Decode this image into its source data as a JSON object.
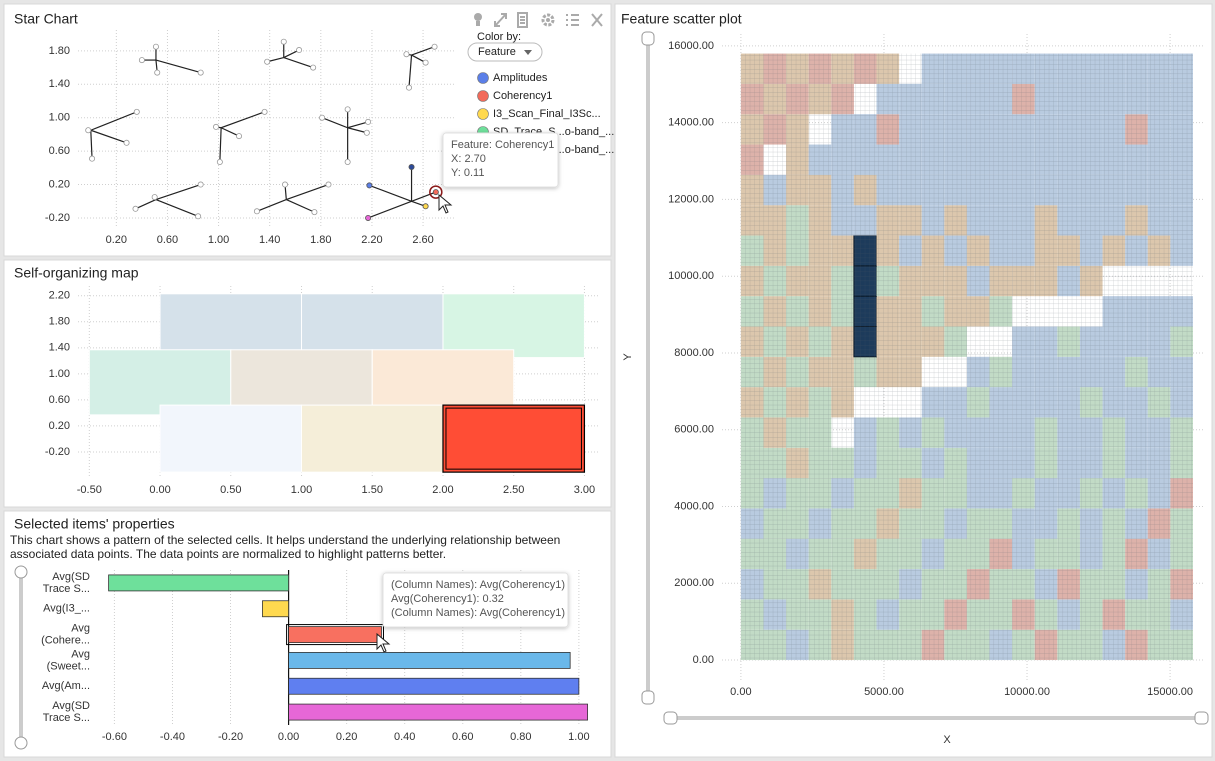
{
  "chart_data": [
    {
      "type": "star",
      "title": "Star Chart",
      "xlim": [
        -0.1,
        2.85
      ],
      "ylim": [
        -0.32,
        2.05
      ],
      "xticks": [
        {
          "value": 0.2,
          "label": "0.20"
        },
        {
          "value": 0.6,
          "label": "0.60"
        },
        {
          "value": 1.0,
          "label": "1.00"
        },
        {
          "value": 1.4,
          "label": "1.40"
        },
        {
          "value": 1.8,
          "label": "1.80"
        },
        {
          "value": 2.2,
          "label": "2.20"
        },
        {
          "value": 2.6,
          "label": "2.60"
        }
      ],
      "yticks": [
        {
          "value": 1.8,
          "label": "1.80"
        },
        {
          "value": 1.4,
          "label": "1.40"
        },
        {
          "value": 1.0,
          "label": "1.00"
        },
        {
          "value": 0.6,
          "label": "0.60"
        },
        {
          "value": 0.2,
          "label": "0.20"
        },
        {
          "value": -0.2,
          "label": "-0.20"
        }
      ],
      "grid": true,
      "legend_title": "Color by:",
      "dropdown": "Feature",
      "series": [
        {
          "name": "Amplitudes",
          "color": "#5b7fe8"
        },
        {
          "name": "Coherency1",
          "color": "#f26a5a"
        },
        {
          "name": "I3_Scan_Final_I3Sc...",
          "color": "#ffd94f"
        },
        {
          "name": "SD_Trace_S...o-band_...",
          "color": "#6ee09b"
        },
        {
          "name": "SD_Trace_S...o-band_...",
          "color": "#e667d7"
        }
      ],
      "stars": [
        {
          "center": [
            0.51,
            1.69
          ],
          "rays": [
            [
              0.51,
              1.85
            ],
            [
              0.4,
              1.69
            ],
            [
              0.52,
              1.54
            ],
            [
              0.86,
              1.54
            ]
          ]
        },
        {
          "center": [
            1.51,
            1.72
          ],
          "rays": [
            [
              1.51,
              1.91
            ],
            [
              1.38,
              1.67
            ],
            [
              1.74,
              1.6
            ],
            [
              1.63,
              1.81
            ]
          ]
        },
        {
          "center": [
            2.51,
            1.75
          ],
          "rays": [
            [
              2.69,
              1.85
            ],
            [
              2.49,
              1.36
            ],
            [
              2.62,
              1.66
            ],
            [
              2.47,
              1.76
            ]
          ]
        },
        {
          "center": [
            0.0,
            0.85
          ],
          "rays": [
            [
              0.36,
              1.07
            ],
            [
              0.28,
              0.7
            ],
            [
              0.01,
              0.51
            ],
            [
              -0.02,
              0.85
            ]
          ]
        },
        {
          "center": [
            1.02,
            0.88
          ],
          "rays": [
            [
              1.36,
              1.07
            ],
            [
              1.01,
              0.47
            ],
            [
              1.16,
              0.78
            ],
            [
              0.98,
              0.89
            ]
          ]
        },
        {
          "center": [
            2.01,
            0.88
          ],
          "rays": [
            [
              2.01,
              1.1
            ],
            [
              2.17,
              0.95
            ],
            [
              2.01,
              0.47
            ],
            [
              1.81,
              1.0
            ],
            [
              2.16,
              0.82
            ]
          ]
        },
        {
          "center": [
            0.51,
            0.02
          ],
          "rays": [
            [
              0.86,
              0.2
            ],
            [
              0.84,
              -0.18
            ],
            [
              0.35,
              -0.09
            ],
            [
              0.5,
              0.05
            ]
          ]
        },
        {
          "center": [
            1.53,
            0.02
          ],
          "rays": [
            [
              1.86,
              0.2
            ],
            [
              1.52,
              0.2
            ],
            [
              1.75,
              -0.13
            ],
            [
              1.3,
              -0.12
            ]
          ]
        },
        {
          "center": [
            2.51,
            0.0
          ],
          "rays": [
            [
              2.18,
              0.19
            ],
            [
              2.7,
              0.11
            ],
            [
              2.62,
              -0.06
            ],
            [
              2.51,
              0.41
            ],
            [
              2.17,
              -0.2
            ]
          ],
          "colors": [
            "#5b7fe8",
            "#f26a5a",
            "#ffd94f",
            "#2c4a9a",
            "#e667d7"
          ],
          "hovered_ray": 1
        }
      ],
      "tooltip": [
        "Feature: Coherency1",
        "X: 2.70",
        "Y: 0.11"
      ]
    },
    {
      "type": "som",
      "title": "Self-organizing map",
      "xlim": [
        -0.58,
        3.11
      ],
      "ylim": [
        -0.6,
        2.35
      ],
      "xticks": [
        {
          "value": -0.5,
          "label": "-0.50"
        },
        {
          "value": 0,
          "label": "0.00"
        },
        {
          "value": 0.5,
          "label": "0.50"
        },
        {
          "value": 1.0,
          "label": "1.00"
        },
        {
          "value": 1.5,
          "label": "1.50"
        },
        {
          "value": 2.0,
          "label": "2.00"
        },
        {
          "value": 2.5,
          "label": "2.50"
        },
        {
          "value": 3.0,
          "label": "3.00"
        }
      ],
      "yticks": [
        {
          "value": 2.2,
          "label": "2.20"
        },
        {
          "value": 1.8,
          "label": "1.80"
        },
        {
          "value": 1.4,
          "label": "1.40"
        },
        {
          "value": 1.0,
          "label": "1.00"
        },
        {
          "value": 0.6,
          "label": "0.60"
        },
        {
          "value": 0.2,
          "label": "0.20"
        },
        {
          "value": -0.2,
          "label": "-0.20"
        }
      ],
      "grid": true,
      "cells": [
        {
          "x": [
            0,
            1
          ],
          "y": [
            1.25,
            2.23
          ],
          "color": "#d5e1ea"
        },
        {
          "x": [
            1,
            2
          ],
          "y": [
            1.25,
            2.23
          ],
          "color": "#d5e1ea"
        },
        {
          "x": [
            2,
            3
          ],
          "y": [
            1.25,
            2.23
          ],
          "color": "#d7f5e4"
        },
        {
          "x": [
            -0.5,
            0.5
          ],
          "y": [
            0.37,
            1.37
          ],
          "color": "#d4efe6"
        },
        {
          "x": [
            0.5,
            1.5
          ],
          "y": [
            0.37,
            1.37
          ],
          "color": "#ece6dc"
        },
        {
          "x": [
            1.5,
            2.5
          ],
          "y": [
            0.37,
            1.37
          ],
          "color": "#fbe9d7"
        },
        {
          "x": [
            0,
            1
          ],
          "y": [
            -0.51,
            0.52
          ],
          "color": "#f2f6fc"
        },
        {
          "x": [
            1,
            2
          ],
          "y": [
            -0.51,
            0.52
          ],
          "color": "#f5eed9"
        },
        {
          "x": [
            2,
            3
          ],
          "y": [
            -0.51,
            0.52
          ],
          "color": "#ff4d35",
          "selected": true
        }
      ]
    },
    {
      "type": "hbar",
      "title": "Selected items' properties",
      "description": [
        "This chart shows a pattern of the selected cells. It helps understand the underlying relationship between",
        "associated data points. The data points are normalized to highlight patterns better."
      ],
      "categories": [
        [
          "Avg(SD",
          "Trace S..."
        ],
        [
          "Avg(I3_..."
        ],
        [
          "Avg",
          "(Cohere..."
        ],
        [
          "Avg",
          "(Sweet..."
        ],
        [
          "Avg(Am..."
        ],
        [
          "Avg(SD",
          "Trace S..."
        ]
      ],
      "values": [
        -0.62,
        -0.09,
        0.32,
        0.97,
        1.0,
        1.03
      ],
      "colors": [
        "#6ee09b",
        "#ffd94f",
        "#f87060",
        "#6ab8ea",
        "#5f7ff0",
        "#e667d7"
      ],
      "selected": 2,
      "xlim": [
        -0.66,
        1.09
      ],
      "xticks": [
        {
          "value": -0.6,
          "label": "-0.60"
        },
        {
          "value": -0.4,
          "label": "-0.40"
        },
        {
          "value": -0.2,
          "label": "-0.20"
        },
        {
          "value": 0,
          "label": "0.00"
        },
        {
          "value": 0.2,
          "label": "0.20"
        },
        {
          "value": 0.4,
          "label": "0.40"
        },
        {
          "value": 0.6,
          "label": "0.60"
        },
        {
          "value": 0.8,
          "label": "0.80"
        },
        {
          "value": 1.0,
          "label": "1.00"
        }
      ],
      "grid": true,
      "tooltip": [
        "(Column Names): Avg(Coherency1)",
        "Avg(Coherency1): 0.32",
        "(Column Names): Avg(Coherency1)"
      ]
    },
    {
      "type": "grid",
      "title": "Feature scatter plot",
      "xlabel": "X",
      "ylabel": "Y",
      "xlim": [
        -660,
        16220
      ],
      "ylim": [
        -520,
        16310
      ],
      "xticks": [
        {
          "value": 0,
          "label": "0.00"
        },
        {
          "value": 5000,
          "label": "5000.00"
        },
        {
          "value": 10000,
          "label": "10000.00"
        },
        {
          "value": 15000,
          "label": "15000.00"
        }
      ],
      "yticks": [
        {
          "value": 0,
          "label": "0.00"
        },
        {
          "value": 2000,
          "label": "2000.00"
        },
        {
          "value": 4000,
          "label": "4000.00"
        },
        {
          "value": 6000,
          "label": "6000.00"
        },
        {
          "value": 8000,
          "label": "8000.00"
        },
        {
          "value": 10000,
          "label": "10000.00"
        },
        {
          "value": 12000,
          "label": "12000.00"
        },
        {
          "value": 14000,
          "label": "14000.00"
        },
        {
          "value": 16000,
          "label": "16000.00"
        }
      ],
      "grid": true,
      "cell": 790,
      "x": [
        0,
        790,
        1580,
        2370,
        3160,
        3950,
        4740,
        5530,
        6320,
        7110,
        7900,
        8690,
        9480,
        10270,
        11060,
        11850,
        12640,
        13430,
        14220,
        15010
      ],
      "y": [
        0,
        790,
        1580,
        2370,
        3160,
        3950,
        4740,
        5530,
        6320,
        7110,
        7900,
        8690,
        9480,
        10270,
        11060,
        11850,
        12640,
        13430,
        14220,
        15010
      ],
      "palette": [
        "#b9cbe0",
        "#dcc7ad",
        "#c2dbc6",
        "#ddb2aa",
        "#1d3b5b"
      ],
      "z": [
        [
          2,
          2,
          0,
          2,
          1,
          2,
          2,
          2,
          3,
          2,
          2,
          0,
          2,
          3,
          2,
          2,
          0,
          3,
          2,
          2
        ],
        [
          2,
          0,
          2,
          2,
          1,
          2,
          0,
          2,
          2,
          3,
          2,
          2,
          3,
          2,
          0,
          2,
          3,
          2,
          2,
          0
        ],
        [
          0,
          2,
          2,
          1,
          2,
          2,
          2,
          0,
          2,
          2,
          3,
          2,
          2,
          0,
          3,
          2,
          2,
          0,
          2,
          3
        ],
        [
          2,
          2,
          0,
          2,
          2,
          1,
          2,
          2,
          0,
          2,
          2,
          3,
          0,
          2,
          2,
          0,
          2,
          3,
          0,
          2
        ],
        [
          0,
          2,
          2,
          0,
          2,
          2,
          1,
          2,
          2,
          0,
          2,
          2,
          0,
          0,
          2,
          0,
          2,
          0,
          3,
          2
        ],
        [
          2,
          0,
          2,
          2,
          0,
          2,
          2,
          1,
          2,
          2,
          0,
          0,
          2,
          0,
          0,
          2,
          0,
          2,
          0,
          3
        ],
        [
          2,
          2,
          1,
          2,
          2,
          0,
          2,
          2,
          0,
          2,
          0,
          0,
          0,
          2,
          0,
          0,
          2,
          0,
          0,
          2
        ],
        [
          2,
          1,
          2,
          2,
          null,
          0,
          2,
          0,
          2,
          0,
          0,
          0,
          0,
          2,
          0,
          0,
          2,
          0,
          0,
          2
        ],
        [
          1,
          2,
          1,
          2,
          1,
          null,
          null,
          null,
          0,
          0,
          2,
          0,
          0,
          0,
          0,
          2,
          0,
          0,
          2,
          0
        ],
        [
          2,
          1,
          2,
          1,
          1,
          2,
          1,
          1,
          null,
          null,
          0,
          2,
          0,
          0,
          0,
          0,
          0,
          2,
          0,
          0
        ],
        [
          1,
          2,
          1,
          2,
          1,
          4,
          1,
          1,
          1,
          2,
          null,
          null,
          0,
          0,
          2,
          0,
          0,
          0,
          0,
          2
        ],
        [
          2,
          1,
          2,
          1,
          2,
          4,
          1,
          1,
          2,
          1,
          1,
          2,
          null,
          null,
          null,
          null,
          0,
          0,
          0,
          0
        ],
        [
          1,
          2,
          1,
          1,
          2,
          4,
          2,
          1,
          1,
          1,
          0,
          1,
          1,
          1,
          0,
          1,
          null,
          null,
          null,
          null
        ],
        [
          2,
          1,
          2,
          1,
          1,
          4,
          1,
          0,
          1,
          0,
          1,
          0,
          0,
          1,
          1,
          0,
          1,
          0,
          1,
          0
        ],
        [
          1,
          1,
          2,
          1,
          0,
          0,
          1,
          1,
          0,
          1,
          0,
          0,
          0,
          1,
          0,
          0,
          0,
          1,
          0,
          0
        ],
        [
          1,
          0,
          1,
          1,
          0,
          1,
          0,
          0,
          0,
          0,
          0,
          0,
          0,
          0,
          0,
          0,
          0,
          0,
          0,
          0
        ],
        [
          3,
          null,
          1,
          0,
          0,
          0,
          0,
          0,
          0,
          0,
          0,
          0,
          0,
          0,
          0,
          0,
          0,
          0,
          0,
          0
        ],
        [
          1,
          3,
          1,
          null,
          0,
          0,
          3,
          0,
          0,
          0,
          0,
          0,
          0,
          0,
          0,
          0,
          0,
          3,
          0,
          0
        ],
        [
          3,
          1,
          3,
          1,
          3,
          null,
          0,
          0,
          0,
          0,
          0,
          0,
          3,
          0,
          0,
          0,
          0,
          0,
          0,
          0
        ],
        [
          1,
          3,
          1,
          3,
          1,
          3,
          1,
          null,
          0,
          0,
          0,
          0,
          0,
          0,
          0,
          0,
          0,
          0,
          0,
          0
        ]
      ]
    }
  ]
}
